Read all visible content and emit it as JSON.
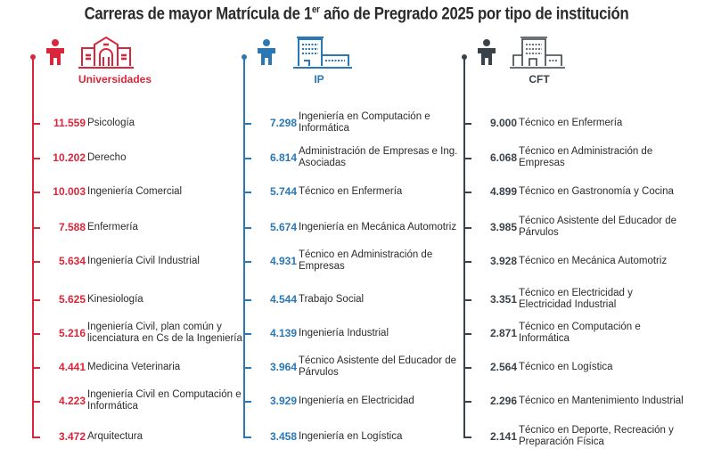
{
  "title": {
    "main": "Carreras de mayor Matrícula de 1",
    "sup": "er",
    "rest": " año de Pregrado 2025 por tipo de institución"
  },
  "columns": [
    {
      "name": "Universidades",
      "color": "#d9263a",
      "items": [
        {
          "value": "11.559",
          "label": "Psicología"
        },
        {
          "value": "10.202",
          "label": "Derecho"
        },
        {
          "value": "10.003",
          "label": "Ingeniería Comercial"
        },
        {
          "value": "7.588",
          "label": "Enfermería"
        },
        {
          "value": "5.634",
          "label": "Ingeniería Civil Industrial"
        },
        {
          "value": "5.625",
          "label": "Kinesiología"
        },
        {
          "value": "5.216",
          "label": "Ingeniería Civil, plan común y licenciatura en Cs de la Ingeniería"
        },
        {
          "value": "4.441",
          "label": "Medicina Veterinaria"
        },
        {
          "value": "4.223",
          "label": "Ingeniería Civil en Computación e Informática"
        },
        {
          "value": "3.472",
          "label": "Arquitectura"
        }
      ]
    },
    {
      "name": "IP",
      "color": "#2a77b5",
      "items": [
        {
          "value": "7.298",
          "label": "Ingeniería en Computación e Informática"
        },
        {
          "value": "6.814",
          "label": "Administración de Empresas e Ing. Asociadas"
        },
        {
          "value": "5.744",
          "label": "Técnico en Enfermería"
        },
        {
          "value": "5.674",
          "label": "Ingeniería en Mecánica Automotriz"
        },
        {
          "value": "4.931",
          "label": "Técnico en Administración de Empresas"
        },
        {
          "value": "4.544",
          "label": "Trabajo Social"
        },
        {
          "value": "4.139",
          "label": "Ingeniería Industrial"
        },
        {
          "value": "3.964",
          "label": "Técnico Asistente del Educador de Párvulos"
        },
        {
          "value": "3.929",
          "label": "Ingeniería en Electricidad"
        },
        {
          "value": "3.458",
          "label": "Ingeniería en Logística"
        }
      ]
    },
    {
      "name": "CFT",
      "color": "#3a4249",
      "items": [
        {
          "value": "9.000",
          "label": "Técnico en Enfermería"
        },
        {
          "value": "6.068",
          "label": "Técnico en Administración de Empresas"
        },
        {
          "value": "4.899",
          "label": "Técnico en Gastronomía y Cocina"
        },
        {
          "value": "3.985",
          "label": "Técnico Asistente del Educador de Párvulos"
        },
        {
          "value": "3.928",
          "label": "Técnico en Mecánica Automotriz"
        },
        {
          "value": "3.351",
          "label": "Técnico en Electricidad y Electricidad Industrial"
        },
        {
          "value": "2.871",
          "label": "Técnico en Computación e Informática"
        },
        {
          "value": "2.564",
          "label": "Técnico en Logística"
        },
        {
          "value": "2.296",
          "label": "Técnico en Mantenimiento Industrial"
        },
        {
          "value": "2.141",
          "label": "Técnico en Deporte, Recreación y Preparación Física"
        }
      ]
    }
  ]
}
